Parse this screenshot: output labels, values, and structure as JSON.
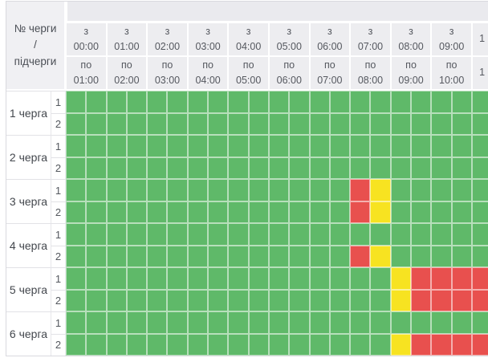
{
  "colors": {
    "on": "#5fb969",
    "off": "#e8504e",
    "maybe": "#f7e321"
  },
  "table": {
    "corner_lines": [
      "№ черги",
      "/",
      "підчерги"
    ],
    "from_prefix": "з",
    "to_prefix": "по",
    "hours": [
      {
        "from": "00:00",
        "to": "01:00"
      },
      {
        "from": "01:00",
        "to": "02:00"
      },
      {
        "from": "02:00",
        "to": "03:00"
      },
      {
        "from": "03:00",
        "to": "04:00"
      },
      {
        "from": "04:00",
        "to": "05:00"
      },
      {
        "from": "05:00",
        "to": "06:00"
      },
      {
        "from": "06:00",
        "to": "07:00"
      },
      {
        "from": "07:00",
        "to": "08:00"
      },
      {
        "from": "08:00",
        "to": "09:00"
      },
      {
        "from": "09:00",
        "to": "10:00"
      }
    ],
    "partial_column": {
      "from": "1",
      "to": "1"
    },
    "queues": [
      {
        "label": "1 черга",
        "subqueues": [
          {
            "label": "1",
            "slots": [
              "on",
              "on",
              "on",
              "on",
              "on",
              "on",
              "on",
              "on",
              "on",
              "on",
              "on",
              "on",
              "on",
              "on",
              "on",
              "on",
              "on",
              "on",
              "on",
              "on",
              "on"
            ]
          },
          {
            "label": "2",
            "slots": [
              "on",
              "on",
              "on",
              "on",
              "on",
              "on",
              "on",
              "on",
              "on",
              "on",
              "on",
              "on",
              "on",
              "on",
              "on",
              "on",
              "on",
              "on",
              "on",
              "on",
              "on"
            ]
          }
        ]
      },
      {
        "label": "2 черга",
        "subqueues": [
          {
            "label": "1",
            "slots": [
              "on",
              "on",
              "on",
              "on",
              "on",
              "on",
              "on",
              "on",
              "on",
              "on",
              "on",
              "on",
              "on",
              "on",
              "on",
              "on",
              "on",
              "on",
              "on",
              "on",
              "on"
            ]
          },
          {
            "label": "2",
            "slots": [
              "on",
              "on",
              "on",
              "on",
              "on",
              "on",
              "on",
              "on",
              "on",
              "on",
              "on",
              "on",
              "on",
              "on",
              "on",
              "on",
              "on",
              "on",
              "on",
              "on",
              "on"
            ]
          }
        ]
      },
      {
        "label": "3 черга",
        "subqueues": [
          {
            "label": "1",
            "slots": [
              "on",
              "on",
              "on",
              "on",
              "on",
              "on",
              "on",
              "on",
              "on",
              "on",
              "on",
              "on",
              "on",
              "on",
              "off",
              "maybe",
              "on",
              "on",
              "on",
              "on",
              "on"
            ]
          },
          {
            "label": "2",
            "slots": [
              "on",
              "on",
              "on",
              "on",
              "on",
              "on",
              "on",
              "on",
              "on",
              "on",
              "on",
              "on",
              "on",
              "on",
              "off",
              "maybe",
              "on",
              "on",
              "on",
              "on",
              "on"
            ]
          }
        ]
      },
      {
        "label": "4 черга",
        "subqueues": [
          {
            "label": "1",
            "slots": [
              "on",
              "on",
              "on",
              "on",
              "on",
              "on",
              "on",
              "on",
              "on",
              "on",
              "on",
              "on",
              "on",
              "on",
              "on",
              "on",
              "on",
              "on",
              "on",
              "on",
              "on"
            ]
          },
          {
            "label": "2",
            "slots": [
              "on",
              "on",
              "on",
              "on",
              "on",
              "on",
              "on",
              "on",
              "on",
              "on",
              "on",
              "on",
              "on",
              "on",
              "off",
              "maybe",
              "on",
              "on",
              "on",
              "on",
              "on"
            ]
          }
        ]
      },
      {
        "label": "5 черга",
        "subqueues": [
          {
            "label": "1",
            "slots": [
              "on",
              "on",
              "on",
              "on",
              "on",
              "on",
              "on",
              "on",
              "on",
              "on",
              "on",
              "on",
              "on",
              "on",
              "on",
              "on",
              "maybe",
              "off",
              "off",
              "off",
              "off"
            ]
          },
          {
            "label": "2",
            "slots": [
              "on",
              "on",
              "on",
              "on",
              "on",
              "on",
              "on",
              "on",
              "on",
              "on",
              "on",
              "on",
              "on",
              "on",
              "on",
              "on",
              "maybe",
              "off",
              "off",
              "off",
              "off"
            ]
          }
        ]
      },
      {
        "label": "6 черга",
        "subqueues": [
          {
            "label": "1",
            "slots": [
              "on",
              "on",
              "on",
              "on",
              "on",
              "on",
              "on",
              "on",
              "on",
              "on",
              "on",
              "on",
              "on",
              "on",
              "on",
              "on",
              "on",
              "on",
              "on",
              "on",
              "on"
            ]
          },
          {
            "label": "2",
            "slots": [
              "on",
              "on",
              "on",
              "on",
              "on",
              "on",
              "on",
              "on",
              "on",
              "on",
              "on",
              "on",
              "on",
              "on",
              "on",
              "on",
              "maybe",
              "off",
              "off",
              "off",
              "off"
            ]
          }
        ]
      }
    ]
  }
}
